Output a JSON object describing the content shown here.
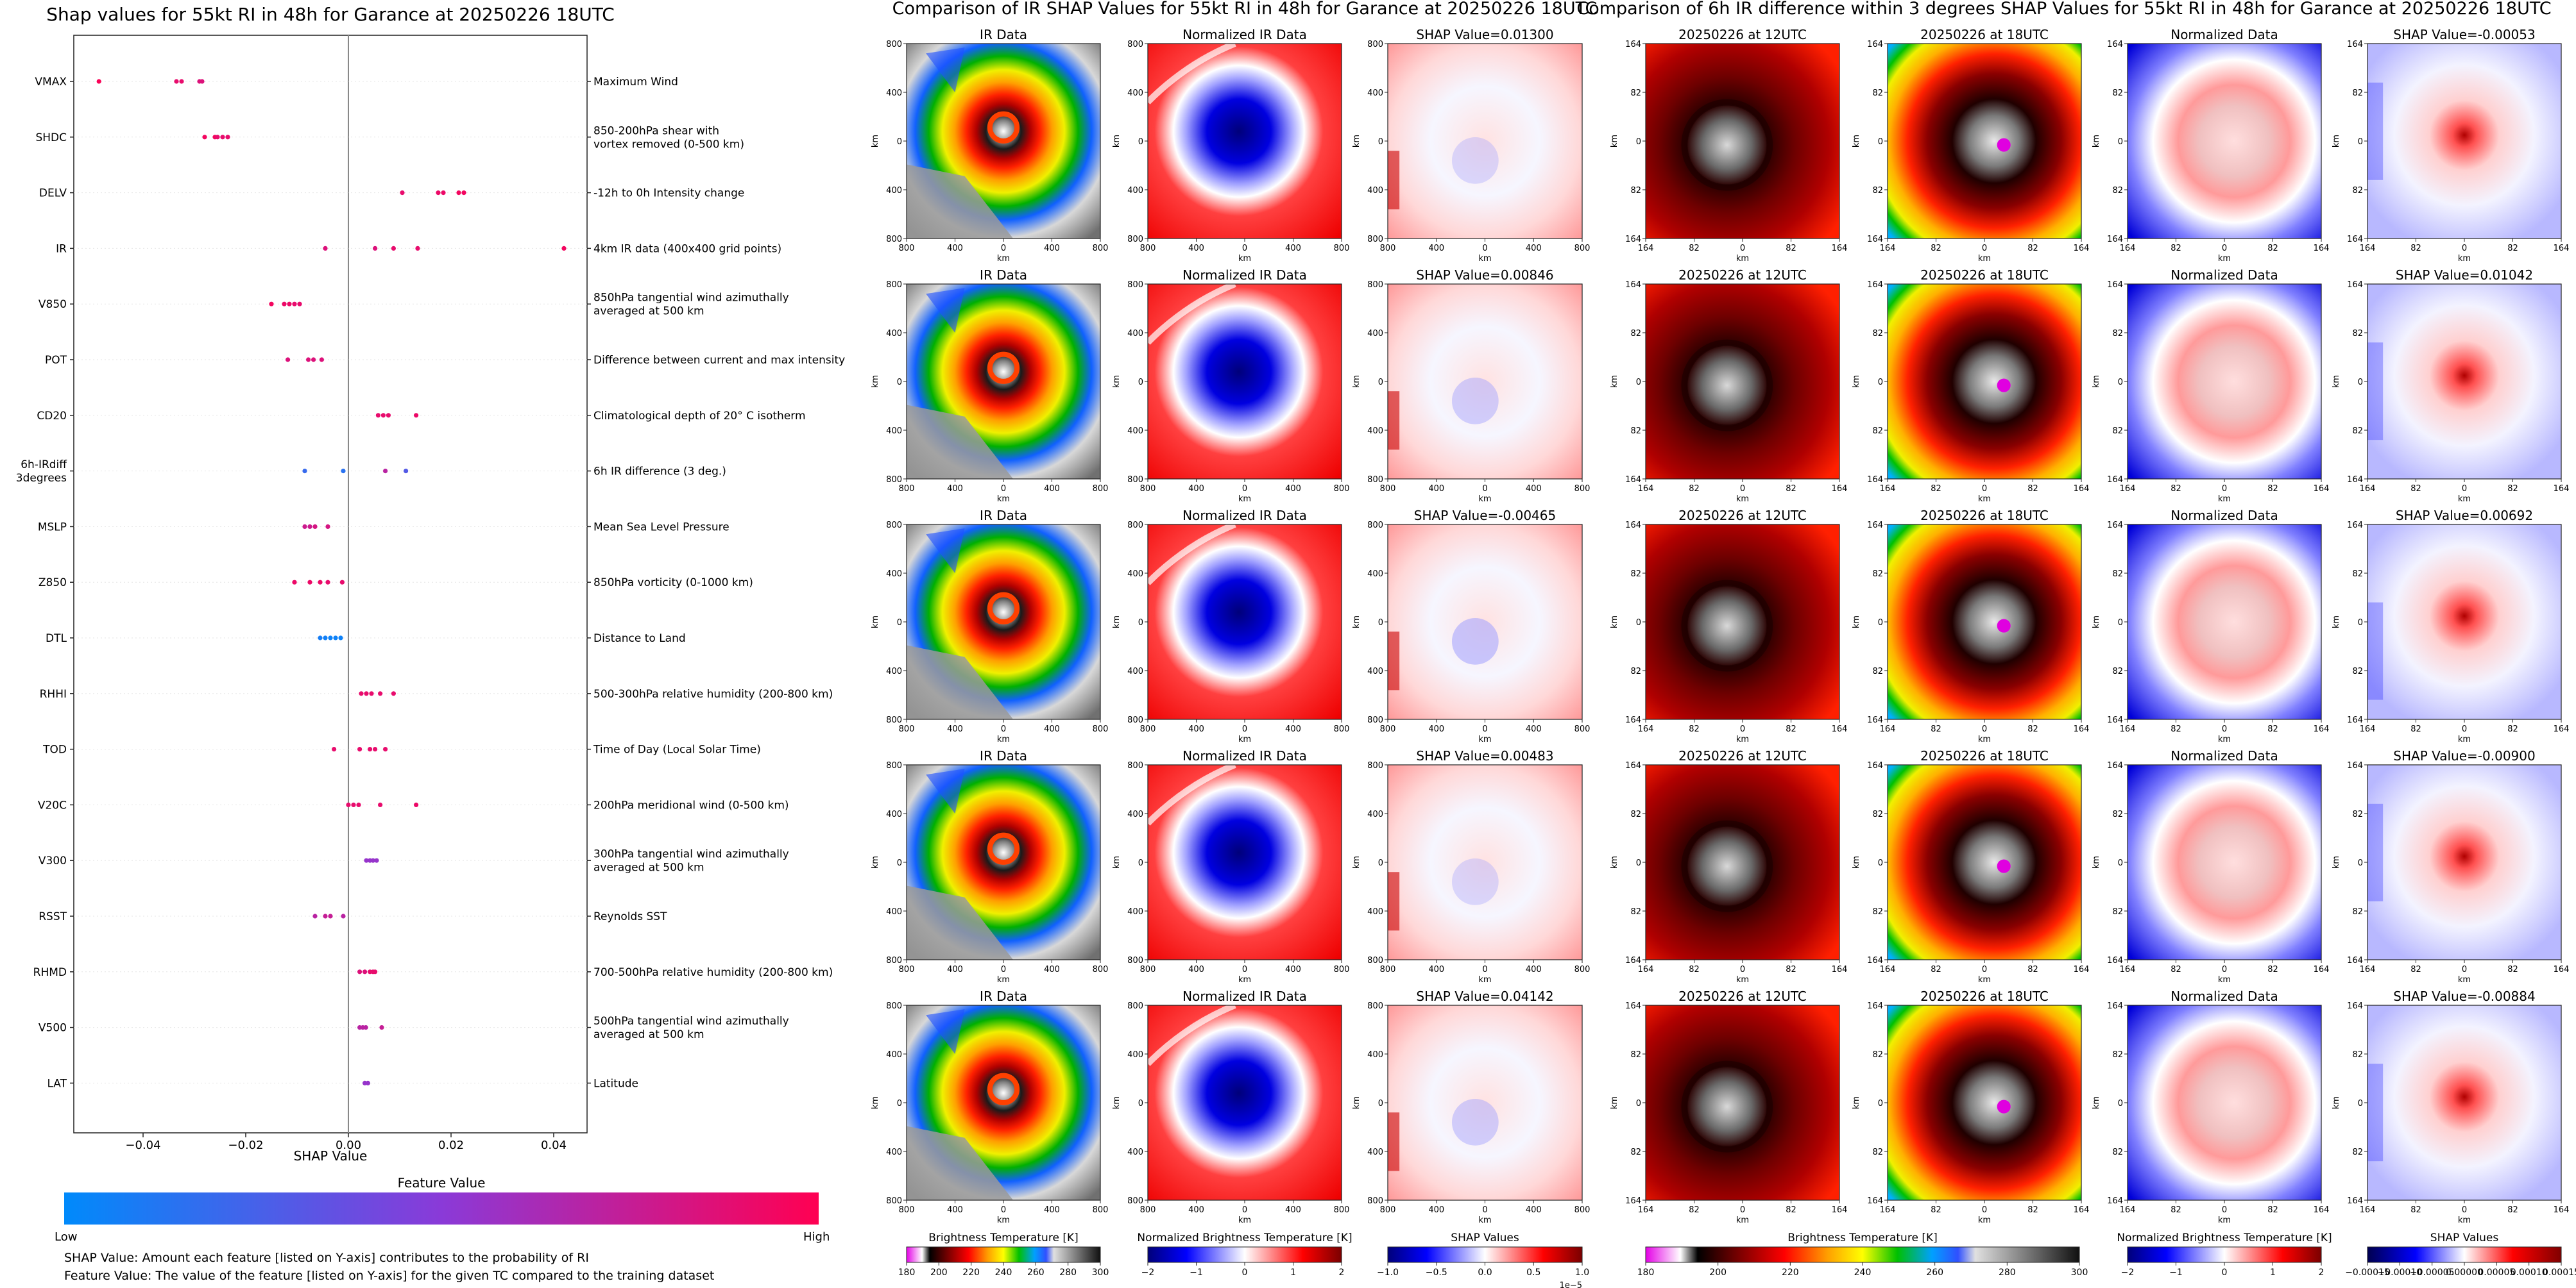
{
  "beeswarm": {
    "type": "scatter",
    "title": "Shap values for 55kt RI in 48h for Garance at 20250226 18UTC",
    "xlabel": "SHAP Value",
    "xlim": [
      -0.0535,
      0.0465
    ],
    "x_ticks": [
      -0.04,
      -0.02,
      0.0,
      0.02,
      0.04
    ],
    "x_tick_labels": [
      "−0.04",
      "−0.02",
      "0.00",
      "0.02",
      "0.04"
    ],
    "features": [
      {
        "name": "VMAX",
        "desc": "Maximum Wind",
        "points": [
          [
            -0.0486,
            0.98
          ],
          [
            -0.0335,
            0.9
          ],
          [
            -0.0325,
            0.9
          ],
          [
            -0.029,
            0.85
          ],
          [
            -0.0285,
            0.85
          ]
        ]
      },
      {
        "name": "SHDC",
        "desc": "850-200hPa shear with\nvortex removed (0-500 km)",
        "points": [
          [
            -0.028,
            0.95
          ],
          [
            -0.026,
            0.95
          ],
          [
            -0.0255,
            0.9
          ],
          [
            -0.0245,
            0.9
          ],
          [
            -0.0235,
            0.9
          ]
        ]
      },
      {
        "name": "DELV",
        "desc": "-12h to 0h Intensity change",
        "points": [
          [
            0.0105,
            0.9
          ],
          [
            0.0175,
            0.92
          ],
          [
            0.0185,
            0.92
          ],
          [
            0.0215,
            0.95
          ],
          [
            0.0225,
            0.95
          ]
        ]
      },
      {
        "name": "IR",
        "desc": "4km IR data (400x400 grid points)",
        "points": [
          [
            -0.0045,
            0.85
          ],
          [
            0.0052,
            0.85
          ],
          [
            0.0088,
            0.9
          ],
          [
            0.0135,
            0.9
          ],
          [
            0.042,
            0.95
          ]
        ]
      },
      {
        "name": "V850",
        "desc": "850hPa tangential wind azimuthally\naveraged at 500 km",
        "points": [
          [
            -0.015,
            0.95
          ],
          [
            -0.0125,
            0.92
          ],
          [
            -0.0115,
            0.92
          ],
          [
            -0.0105,
            0.9
          ],
          [
            -0.0095,
            0.9
          ]
        ]
      },
      {
        "name": "POT",
        "desc": "Difference between current and max intensity",
        "points": [
          [
            -0.0118,
            0.85
          ],
          [
            -0.0078,
            0.85
          ],
          [
            -0.0068,
            0.85
          ],
          [
            -0.0052,
            0.85
          ]
        ]
      },
      {
        "name": "CD20",
        "desc": "Climatological depth of 20° C isotherm",
        "points": [
          [
            0.0058,
            0.9
          ],
          [
            0.0068,
            0.9
          ],
          [
            0.0078,
            0.9
          ],
          [
            0.0132,
            0.92
          ]
        ]
      },
      {
        "name": "6h-IRdiff\n3degrees",
        "desc": "6h IR difference (3 deg.)",
        "points": [
          [
            -0.0085,
            0.2
          ],
          [
            -0.001,
            0.15
          ],
          [
            0.0072,
            0.7
          ],
          [
            0.0112,
            0.3
          ]
        ]
      },
      {
        "name": "MSLP",
        "desc": "Mean Sea Level Pressure",
        "points": [
          [
            -0.0085,
            0.78
          ],
          [
            -0.0075,
            0.78
          ],
          [
            -0.0065,
            0.82
          ],
          [
            -0.004,
            0.82
          ]
        ]
      },
      {
        "name": "Z850",
        "desc": "850hPa vorticity (0-1000 km)",
        "points": [
          [
            -0.0105,
            0.92
          ],
          [
            -0.0075,
            0.92
          ],
          [
            -0.0055,
            0.92
          ],
          [
            -0.004,
            0.9
          ],
          [
            -0.0012,
            0.9
          ]
        ]
      },
      {
        "name": "DTL",
        "desc": "Distance to Land",
        "points": [
          [
            -0.0055,
            0.08
          ],
          [
            -0.0045,
            0.06
          ],
          [
            -0.0035,
            0.05
          ],
          [
            -0.0025,
            0.05
          ],
          [
            -0.0015,
            0.05
          ]
        ]
      },
      {
        "name": "RHHI",
        "desc": "500-300hPa relative humidity (200-800 km)",
        "points": [
          [
            0.0025,
            0.9
          ],
          [
            0.0035,
            0.9
          ],
          [
            0.0045,
            0.9
          ],
          [
            0.0062,
            0.9
          ],
          [
            0.0088,
            0.9
          ]
        ]
      },
      {
        "name": "TOD",
        "desc": "Time of Day (Local Solar Time)",
        "points": [
          [
            -0.0028,
            0.9
          ],
          [
            0.0022,
            0.9
          ],
          [
            0.0042,
            0.9
          ],
          [
            0.0052,
            0.9
          ],
          [
            0.0072,
            0.9
          ]
        ]
      },
      {
        "name": "V20C",
        "desc": "200hPa meridional wind (0-500 km)",
        "points": [
          [
            0.0,
            0.9
          ],
          [
            0.001,
            0.9
          ],
          [
            0.002,
            0.9
          ],
          [
            0.0062,
            0.9
          ],
          [
            0.0132,
            0.92
          ]
        ]
      },
      {
        "name": "V300",
        "desc": "300hPa tangential wind azimuthally\naveraged at 500 km",
        "points": [
          [
            0.0035,
            0.55
          ],
          [
            0.0042,
            0.55
          ],
          [
            0.0048,
            0.55
          ],
          [
            0.0055,
            0.55
          ]
        ]
      },
      {
        "name": "RSST",
        "desc": "Reynolds SST",
        "points": [
          [
            -0.0065,
            0.7
          ],
          [
            -0.0045,
            0.75
          ],
          [
            -0.0035,
            0.75
          ],
          [
            -0.001,
            0.7
          ]
        ]
      },
      {
        "name": "RHMD",
        "desc": "700-500hPa relative humidity (200-800 km)",
        "points": [
          [
            0.0022,
            0.85
          ],
          [
            0.0032,
            0.85
          ],
          [
            0.0042,
            0.9
          ],
          [
            0.0048,
            0.9
          ],
          [
            0.0052,
            0.9
          ]
        ]
      },
      {
        "name": "V500",
        "desc": "500hPa tangential wind azimuthally\naveraged at 500 km",
        "points": [
          [
            0.0022,
            0.7
          ],
          [
            0.0028,
            0.7
          ],
          [
            0.0034,
            0.7
          ],
          [
            0.0065,
            0.75
          ]
        ]
      },
      {
        "name": "LAT",
        "desc": "Latitude",
        "points": [
          [
            0.0032,
            0.55
          ],
          [
            0.0038,
            0.55
          ]
        ]
      }
    ],
    "colorbar": {
      "title": "Feature Value",
      "low": "Low",
      "high": "High",
      "colors": [
        "#008afb",
        "#ff0052"
      ]
    },
    "notes": [
      "SHAP Value: Amount each feature [listed on Y-axis] contributes to the probability of RI",
      "Feature Value: The value of the feature [listed on Y-axis] for the given TC compared to the training dataset"
    ]
  },
  "ir_group": {
    "title": "Comparison of IR SHAP Values for 55kt RI in 48h for Garance at 20250226 18UTC",
    "col_titles": [
      "IR Data",
      "Normalized IR Data"
    ],
    "shap_titles": [
      "SHAP Value=0.01300",
      "SHAP Value=0.00846",
      "SHAP Value=-0.00465",
      "SHAP Value=0.00483",
      "SHAP Value=0.04142"
    ],
    "axis_label": "km",
    "y_ticks": [
      "800",
      "400",
      "0",
      "400",
      "800"
    ],
    "x_ticks": [
      "800",
      "400",
      "0",
      "400",
      "800"
    ],
    "colorbars": [
      {
        "label": "Brightness Temperature [K]",
        "ticks": [
          "180",
          "200",
          "220",
          "240",
          "260",
          "280",
          "300"
        ]
      },
      {
        "label": "Normalized Brightness Temperature [K]",
        "ticks": [
          "−2",
          "−1",
          "0",
          "1",
          "2"
        ]
      },
      {
        "label": "SHAP Values",
        "ticks": [
          "−1.0",
          "−0.5",
          "0.0",
          "0.5",
          "1.0"
        ],
        "offset": "1e−5"
      }
    ]
  },
  "diff_group": {
    "title": "Comparison of 6h IR difference within 3 degrees SHAP Values for 55kt RI in 48h for Garance at 20250226 18UTC",
    "col_titles": [
      "20250226 at 12UTC",
      "20250226 at 18UTC",
      "Normalized Data"
    ],
    "shap_titles": [
      "SHAP Value=-0.00053",
      "SHAP Value=0.01042",
      "SHAP Value=0.00692",
      "SHAP Value=-0.00900",
      "SHAP Value=-0.00884"
    ],
    "axis_label": "km",
    "y_ticks": [
      "164",
      "82",
      "0",
      "82",
      "164"
    ],
    "x_ticks": [
      "164",
      "82",
      "0",
      "82",
      "164"
    ],
    "colorbars": [
      {
        "label": "Brightness Temperature [K]",
        "ticks": [
          "180",
          "200",
          "220",
          "240",
          "260",
          "280",
          "300"
        ]
      },
      {
        "label": "Normalized Brightness Temperature [K]",
        "ticks": [
          "−2",
          "−1",
          "0",
          "1",
          "2"
        ]
      },
      {
        "label": "SHAP Values",
        "ticks": [
          "−0.00015",
          "−0.00010",
          "−0.00005",
          "0.00000",
          "0.00005",
          "0.00010",
          "0.00015"
        ]
      }
    ]
  }
}
